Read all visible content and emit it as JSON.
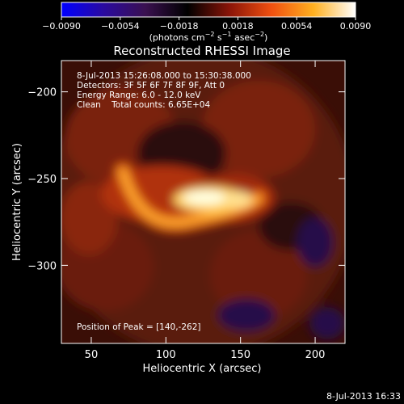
{
  "chart_data": {
    "type": "heatmap",
    "title": "Reconstructed RHESSI Image",
    "xlabel": "Heliocentric X (arcsec)",
    "ylabel": "Heliocentric Y (arcsec)",
    "xlim": [
      30,
      220
    ],
    "ylim": [
      -345,
      -182
    ],
    "x_ticks": [
      {
        "value": 50,
        "label": "50"
      },
      {
        "value": 100,
        "label": "100"
      },
      {
        "value": 150,
        "label": "150"
      },
      {
        "value": 200,
        "label": "200"
      }
    ],
    "y_ticks": [
      {
        "value": -200,
        "label": "−200"
      },
      {
        "value": -250,
        "label": "−250"
      },
      {
        "value": -300,
        "label": "−300"
      }
    ],
    "colorbar": {
      "min": -0.009,
      "max": 0.009,
      "ticks": [
        {
          "value": -0.009,
          "label": "−0.0090"
        },
        {
          "value": -0.0054,
          "label": "−0.0054"
        },
        {
          "value": -0.0018,
          "label": "−0.0018"
        },
        {
          "value": 0.0018,
          "label": "0.0018"
        },
        {
          "value": 0.0054,
          "label": "0.0054"
        },
        {
          "value": 0.009,
          "label": "0.0090"
        }
      ],
      "unit_label_parts": [
        "(photons cm",
        "−2",
        " s",
        "−1",
        " asec",
        "−2",
        ")"
      ],
      "colors": [
        "#0000ff",
        "#2a0aa0",
        "#3a1050",
        "#000000",
        "#8a1408",
        "#f05010",
        "#ffb020",
        "#ffffff"
      ]
    },
    "annotations": [
      "8-Jul-2013 15:26:08.000 to 15:30:38.000",
      "Detectors: 3F 5F 6F 7F 8F 9F, Att 0",
      "Energy Range: 6.0 - 12.0 keV",
      "Clean    Total counts: 6.65E+04"
    ],
    "peak_label": "Position of Peak = [140,-262]",
    "peak": {
      "x": 140,
      "y": -262
    }
  },
  "footer": {
    "timestamp": "8-Jul-2013 16:33"
  }
}
